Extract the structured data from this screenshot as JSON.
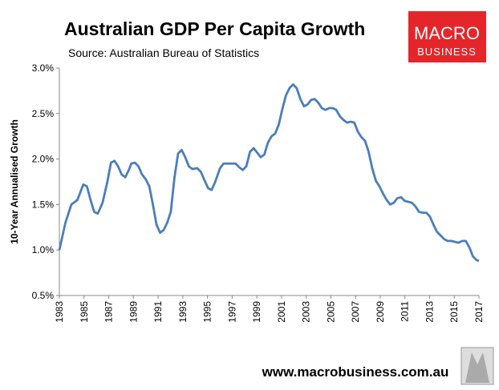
{
  "chart_data": {
    "type": "line",
    "title": "Australian GDP Per Capita Growth",
    "subtitle": "Source: Australian Bureau of Statistics",
    "y_label": "10-Year Annualised Growth",
    "logo_top": "MACRO",
    "logo_bottom": "BUSINESS",
    "footer": "www.macrobusiness.com.au",
    "xlim": [
      1983,
      2017
    ],
    "xticks": [
      1983,
      1985,
      1987,
      1989,
      1991,
      1993,
      1995,
      1997,
      1999,
      2001,
      2003,
      2005,
      2007,
      2009,
      2011,
      2013,
      2015,
      2017
    ],
    "ylim": [
      0.5,
      3.0
    ],
    "yticks": [
      {
        "value": 0.5,
        "label": "0.5%"
      },
      {
        "value": 1.0,
        "label": "1.0%"
      },
      {
        "value": 1.5,
        "label": "1.5%"
      },
      {
        "value": 2.0,
        "label": "2.0%"
      },
      {
        "value": 2.5,
        "label": "2.5%"
      },
      {
        "value": 3.0,
        "label": "3.0%"
      }
    ],
    "grid": false,
    "series": [
      {
        "color": "#4a7ebb",
        "x": [
          1983,
          1983.49,
          1983.97,
          1984.46,
          1984.94,
          1985.23,
          1985.53,
          1985.82,
          1986.11,
          1986.5,
          1986.89,
          1987.18,
          1987.47,
          1987.76,
          1988.05,
          1988.34,
          1988.63,
          1988.83,
          1989.12,
          1989.41,
          1989.7,
          1989.99,
          1990.29,
          1990.58,
          1990.87,
          1991.16,
          1991.45,
          1991.74,
          1992.03,
          1992.33,
          1992.62,
          1992.91,
          1993.2,
          1993.49,
          1993.78,
          1994.17,
          1994.46,
          1994.75,
          1995.05,
          1995.34,
          1995.63,
          1996.02,
          1996.31,
          1996.6,
          1996.99,
          1997.28,
          1997.57,
          1997.86,
          1998.15,
          1998.45,
          1998.74,
          1999.03,
          1999.32,
          1999.61,
          1999.9,
          2000.19,
          2000.49,
          2000.78,
          2001.07,
          2001.36,
          2001.65,
          2001.94,
          2002.23,
          2002.53,
          2002.82,
          2003.11,
          2003.4,
          2003.69,
          2003.98,
          2004.27,
          2004.57,
          2004.86,
          2005.15,
          2005.44,
          2005.73,
          2006.02,
          2006.31,
          2006.61,
          2006.9,
          2007.19,
          2007.48,
          2007.77,
          2008.06,
          2008.35,
          2008.65,
          2008.94,
          2009.23,
          2009.52,
          2009.81,
          2010.1,
          2010.39,
          2010.69,
          2010.98,
          2011.27,
          2011.56,
          2011.85,
          2012.14,
          2012.43,
          2012.73,
          2013.02,
          2013.31,
          2013.6,
          2013.89,
          2014.18,
          2014.47,
          2014.76,
          2015.06,
          2015.35,
          2015.64,
          2015.93,
          2016.22,
          2016.51,
          2016.8,
          2017
        ],
        "values": [
          1.0,
          1.3,
          1.5,
          1.55,
          1.72,
          1.7,
          1.55,
          1.42,
          1.4,
          1.52,
          1.75,
          1.96,
          1.98,
          1.92,
          1.83,
          1.8,
          1.88,
          1.95,
          1.96,
          1.92,
          1.83,
          1.78,
          1.7,
          1.5,
          1.28,
          1.19,
          1.22,
          1.3,
          1.42,
          1.8,
          2.06,
          2.1,
          2.02,
          1.92,
          1.89,
          1.9,
          1.86,
          1.77,
          1.68,
          1.66,
          1.75,
          1.9,
          1.95,
          1.95,
          1.95,
          1.95,
          1.91,
          1.88,
          1.92,
          2.08,
          2.12,
          2.07,
          2.02,
          2.05,
          2.18,
          2.25,
          2.28,
          2.38,
          2.55,
          2.7,
          2.78,
          2.82,
          2.78,
          2.66,
          2.58,
          2.6,
          2.65,
          2.66,
          2.62,
          2.56,
          2.54,
          2.56,
          2.56,
          2.54,
          2.47,
          2.43,
          2.4,
          2.41,
          2.4,
          2.3,
          2.24,
          2.2,
          2.08,
          1.9,
          1.76,
          1.7,
          1.62,
          1.55,
          1.5,
          1.52,
          1.57,
          1.58,
          1.54,
          1.53,
          1.52,
          1.48,
          1.42,
          1.41,
          1.41,
          1.37,
          1.28,
          1.2,
          1.16,
          1.12,
          1.1,
          1.1,
          1.09,
          1.08,
          1.1,
          1.1,
          1.03,
          0.93,
          0.89,
          0.88
        ]
      }
    ]
  }
}
